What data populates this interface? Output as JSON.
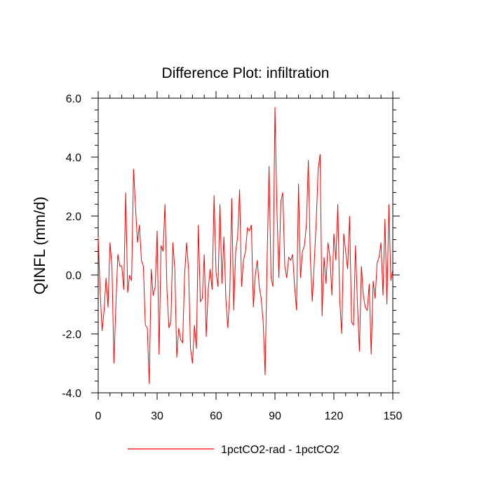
{
  "chart_data": {
    "type": "line",
    "title": "Difference Plot: infiltration",
    "xlabel": "",
    "ylabel": "QINFL  (mm/d)",
    "xlim": [
      0,
      150
    ],
    "ylim": [
      -4.0,
      6.0
    ],
    "xticks": [
      0,
      30,
      60,
      90,
      120,
      150
    ],
    "xtick_labels": [
      "0",
      "30",
      "60",
      "90",
      "120",
      "150"
    ],
    "yticks": [
      -4.0,
      -2.0,
      0.0,
      2.0,
      4.0,
      6.0
    ],
    "ytick_labels": [
      "-4.0",
      "-2.0",
      "0.0",
      "2.0",
      "4.0",
      "6.0"
    ],
    "grid": false,
    "legend_position": "bottom-center",
    "series": [
      {
        "name": "1pctCO2-rad - 1pctCO2",
        "color": "#ff0000",
        "x": [
          0,
          1,
          2,
          3,
          4,
          5,
          6,
          7,
          8,
          9,
          10,
          11,
          12,
          13,
          14,
          15,
          16,
          17,
          18,
          19,
          20,
          21,
          22,
          23,
          24,
          25,
          26,
          27,
          28,
          29,
          30,
          31,
          32,
          33,
          34,
          35,
          36,
          37,
          38,
          39,
          40,
          41,
          42,
          43,
          44,
          45,
          46,
          47,
          48,
          49,
          50,
          51,
          52,
          53,
          54,
          55,
          56,
          57,
          58,
          59,
          60,
          61,
          62,
          63,
          64,
          65,
          66,
          67,
          68,
          69,
          70,
          71,
          72,
          73,
          74,
          75,
          76,
          77,
          78,
          79,
          80,
          81,
          82,
          83,
          84,
          85,
          86,
          87,
          88,
          89,
          90,
          91,
          92,
          93,
          94,
          95,
          96,
          97,
          98,
          99,
          100,
          101,
          102,
          103,
          104,
          105,
          106,
          107,
          108,
          109,
          110,
          111,
          112,
          113,
          114,
          115,
          116,
          117,
          118,
          119,
          120,
          121,
          122,
          123,
          124,
          125,
          126,
          127,
          128,
          129,
          130,
          131,
          132,
          133,
          134,
          135,
          136,
          137,
          138,
          139,
          140,
          141,
          142,
          143,
          144,
          145,
          146,
          147,
          148,
          149,
          150
        ],
        "values": [
          1.3,
          -0.6,
          -1.9,
          -1.2,
          -0.1,
          -1.1,
          1.1,
          0.3,
          -3.0,
          -1.0,
          0.7,
          0.3,
          0.3,
          -0.5,
          2.8,
          -0.6,
          0.0,
          -0.2,
          3.6,
          2.3,
          1.1,
          1.7,
          0.5,
          0.3,
          -1.7,
          -1.8,
          -3.7,
          0.2,
          -0.7,
          -0.4,
          1.5,
          -2.7,
          1.0,
          0.8,
          2.4,
          -0.5,
          -1.8,
          -1.6,
          1.1,
          0.2,
          -2.8,
          -1.8,
          -2.2,
          -2.3,
          0.0,
          1.1,
          0.2,
          -2.5,
          -3.0,
          -1.7,
          -2.5,
          1.7,
          -0.9,
          -0.8,
          0.7,
          -2.1,
          -0.5,
          0.2,
          -0.5,
          2.7,
          0.1,
          -0.4,
          2.4,
          -0.3,
          1.3,
          -0.8,
          -1.8,
          -0.6,
          2.6,
          -1.2,
          0.8,
          1.3,
          2.9,
          -0.4,
          0.5,
          0.8,
          1.6,
          1.5,
          1.7,
          -1.1,
          0.0,
          0.5,
          -0.4,
          -0.8,
          -1.6,
          -3.4,
          0.5,
          3.7,
          -0.1,
          -0.4,
          5.7,
          2.2,
          -0.1,
          2.5,
          2.8,
          0.3,
          -0.1,
          0.6,
          0.5,
          0.7,
          -0.4,
          -1.2,
          3.1,
          -0.1,
          0.8,
          1.0,
          1.7,
          3.9,
          0.6,
          -0.9,
          0.4,
          1.8,
          3.6,
          4.1,
          -1.4,
          0.6,
          -0.3,
          1.1,
          0.6,
          -0.7,
          1.4,
          0.5,
          2.4,
          -0.9,
          -2.0,
          1.4,
          0.8,
          0.2,
          2.0,
          -1.6,
          -1.7,
          1.0,
          -1.0,
          -2.6,
          0.3,
          -0.7,
          -1.1,
          -1.2,
          -0.3,
          -2.7,
          -0.2,
          -0.8,
          0.4,
          0.6,
          1.1,
          -0.7,
          1.9,
          -1.0,
          2.4,
          -0.2,
          0.2
        ]
      }
    ]
  }
}
